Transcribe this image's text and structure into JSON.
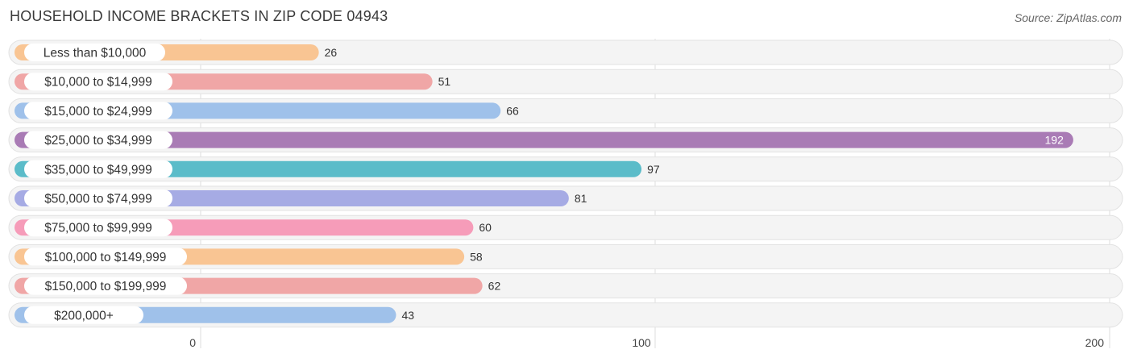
{
  "header": {
    "title": "HOUSEHOLD INCOME BRACKETS IN ZIP CODE 04943",
    "source": "Source: ZipAtlas.com"
  },
  "chart_data": {
    "type": "bar",
    "orientation": "horizontal",
    "title": "HOUSEHOLD INCOME BRACKETS IN ZIP CODE 04943",
    "xlabel": "",
    "ylabel": "",
    "xlim": [
      0,
      200
    ],
    "ticks": [
      0,
      100,
      200
    ],
    "grid": true,
    "categories": [
      "Less than $10,000",
      "$10,000 to $14,999",
      "$15,000 to $24,999",
      "$25,000 to $34,999",
      "$35,000 to $49,999",
      "$50,000 to $74,999",
      "$75,000 to $99,999",
      "$100,000 to $149,999",
      "$150,000 to $199,999",
      "$200,000+"
    ],
    "values": [
      26,
      51,
      66,
      192,
      97,
      81,
      60,
      58,
      62,
      43
    ],
    "colors": [
      "#f9c593",
      "#f0a6a6",
      "#9fc1ea",
      "#a97bb5",
      "#5bbcc9",
      "#a6abe4",
      "#f69cb9",
      "#f9c593",
      "#f0a6a6",
      "#9fc1ea"
    ]
  }
}
